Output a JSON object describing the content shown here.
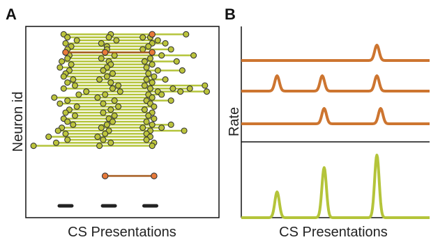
{
  "colors": {
    "neuron_fill": "#bcc43c",
    "neuron_line": "#b4c43a",
    "highlight_fill": "#e87a3a",
    "highlight_line": "#a45a1e",
    "rate_orange": "#cd7530",
    "rate_green": "#b4c43a",
    "axis": "#111111"
  },
  "chart_data": [
    {
      "panel": "A",
      "type": "scatter",
      "xlabel": "CS Presentations",
      "ylabel": "Neuron id",
      "xlim": [
        0,
        1
      ],
      "ylim": [
        0,
        60
      ],
      "grid": false,
      "legend": "none",
      "note_marks": "each row = one neuron; circles mark responses at presentations, linked by a line",
      "rows": [
        {
          "y": 59,
          "x": [
            0.19,
            0.44,
            0.66,
            0.84
          ]
        },
        {
          "y": 58,
          "x": [
            0.21,
            0.43,
            0.61,
            0.65
          ]
        },
        {
          "y": 57,
          "x": [
            0.26,
            0.47,
            0.69
          ]
        },
        {
          "y": 56,
          "x": [
            0.2,
            0.39,
            0.66,
            0.73
          ]
        },
        {
          "y": 55,
          "x": [
            0.23,
            0.42,
            0.64
          ]
        },
        {
          "y": 54,
          "x": [
            0.21,
            0.42,
            0.61,
            0.76
          ]
        },
        {
          "y": 53,
          "x": [
            0.2,
            0.41,
            0.66
          ]
        },
        {
          "y": 52,
          "x": [
            0.22,
            0.46,
            0.71,
            0.88
          ]
        },
        {
          "y": 51,
          "x": [
            0.21,
            0.39,
            0.65
          ]
        },
        {
          "y": 50,
          "x": [
            0.18,
            0.43,
            0.62,
            0.79
          ]
        },
        {
          "y": 49,
          "x": [
            0.23,
            0.44,
            0.66
          ]
        },
        {
          "y": 48,
          "x": [
            0.17,
            0.42,
            0.63
          ]
        },
        {
          "y": 47,
          "x": [
            0.22,
            0.4,
            0.69,
            0.82
          ]
        },
        {
          "y": 46,
          "x": [
            0.2,
            0.45,
            0.64
          ]
        },
        {
          "y": 45,
          "x": [
            0.19,
            0.42,
            0.67
          ]
        },
        {
          "y": 44,
          "x": [
            0.24,
            0.38,
            0.63,
            0.73
          ]
        },
        {
          "y": 43,
          "x": [
            0.21,
            0.44,
            0.66
          ]
        },
        {
          "y": 42,
          "x": [
            0.25,
            0.48,
            0.62,
            0.94
          ]
        },
        {
          "y": 41,
          "x": [
            0.19,
            0.45,
            0.65,
            0.77,
            0.86
          ]
        },
        {
          "y": 40,
          "x": [
            0.31,
            0.49,
            0.69,
            0.81,
            0.95
          ]
        },
        {
          "y": 39,
          "x": [
            0.27,
            0.41,
            0.64,
            0.71
          ]
        },
        {
          "y": 38,
          "x": [
            0.14,
            0.37,
            0.66
          ]
        },
        {
          "y": 37,
          "x": [
            0.21,
            0.46,
            0.63,
            0.76
          ]
        },
        {
          "y": 36,
          "x": [
            0.17,
            0.4,
            0.65
          ]
        },
        {
          "y": 35,
          "x": [
            0.26,
            0.48,
            0.67
          ]
        },
        {
          "y": 34,
          "x": [
            0.22,
            0.44,
            0.62
          ]
        },
        {
          "y": 33,
          "x": [
            0.2,
            0.4,
            0.66
          ]
        },
        {
          "y": 32,
          "x": [
            0.25,
            0.46,
            0.64
          ]
        },
        {
          "y": 31,
          "x": [
            0.19,
            0.43,
            0.67
          ]
        },
        {
          "y": 30,
          "x": [
            0.21,
            0.45,
            0.63
          ]
        },
        {
          "y": 29,
          "x": [
            0.24,
            0.42,
            0.66,
            0.76
          ]
        },
        {
          "y": 28,
          "x": [
            0.18,
            0.39,
            0.61,
            0.71
          ]
        },
        {
          "y": 27,
          "x": [
            0.16,
            0.43,
            0.65,
            0.83
          ]
        },
        {
          "y": 26,
          "x": [
            0.2,
            0.41,
            0.63
          ]
        },
        {
          "y": 25,
          "x": [
            0.11,
            0.37,
            0.65
          ]
        },
        {
          "y": 24,
          "x": [
            0.21,
            0.4,
            0.63
          ]
        },
        {
          "y": 23,
          "x": [
            0.15,
            0.44,
            0.67
          ]
        },
        {
          "y": 22,
          "x": [
            0.03,
            0.38,
            0.66
          ]
        }
      ],
      "highlight_rows": [
        {
          "y": 53,
          "x": [
            0.2,
            0.41,
            0.66
          ]
        },
        {
          "y": 59,
          "x": [
            0.66
          ]
        },
        {
          "y": 12,
          "x": [
            0.41,
            0.67
          ]
        }
      ],
      "presentation_marks": [
        0.2,
        0.43,
        0.65
      ]
    },
    {
      "panel": "B",
      "type": "line",
      "xlabel": "CS Presentations",
      "ylabel": "Rate",
      "xlim": [
        0,
        1
      ],
      "grid": false,
      "legend": "none",
      "series": [
        {
          "color": "orange",
          "peaks_at": [
            0.72
          ],
          "baseline": 0,
          "peak": 1
        },
        {
          "color": "orange",
          "peaks_at": [
            0.19,
            0.43,
            0.72
          ],
          "baseline": 0,
          "peak": 1
        },
        {
          "color": "orange",
          "peaks_at": [
            0.44,
            0.74
          ],
          "baseline": 0,
          "peak": 1
        },
        {
          "color": "green",
          "peaks_at": [
            0.19,
            0.44,
            0.72
          ],
          "peak_heights": [
            0.37,
            0.72,
            0.9
          ],
          "baseline": 0
        }
      ]
    }
  ],
  "labels": {
    "panel_a": "A",
    "panel_b": "B",
    "a_xlabel": "CS Presentations",
    "a_ylabel": "Neuron id",
    "b_xlabel": "CS Presentations",
    "b_ylabel": "Rate"
  }
}
